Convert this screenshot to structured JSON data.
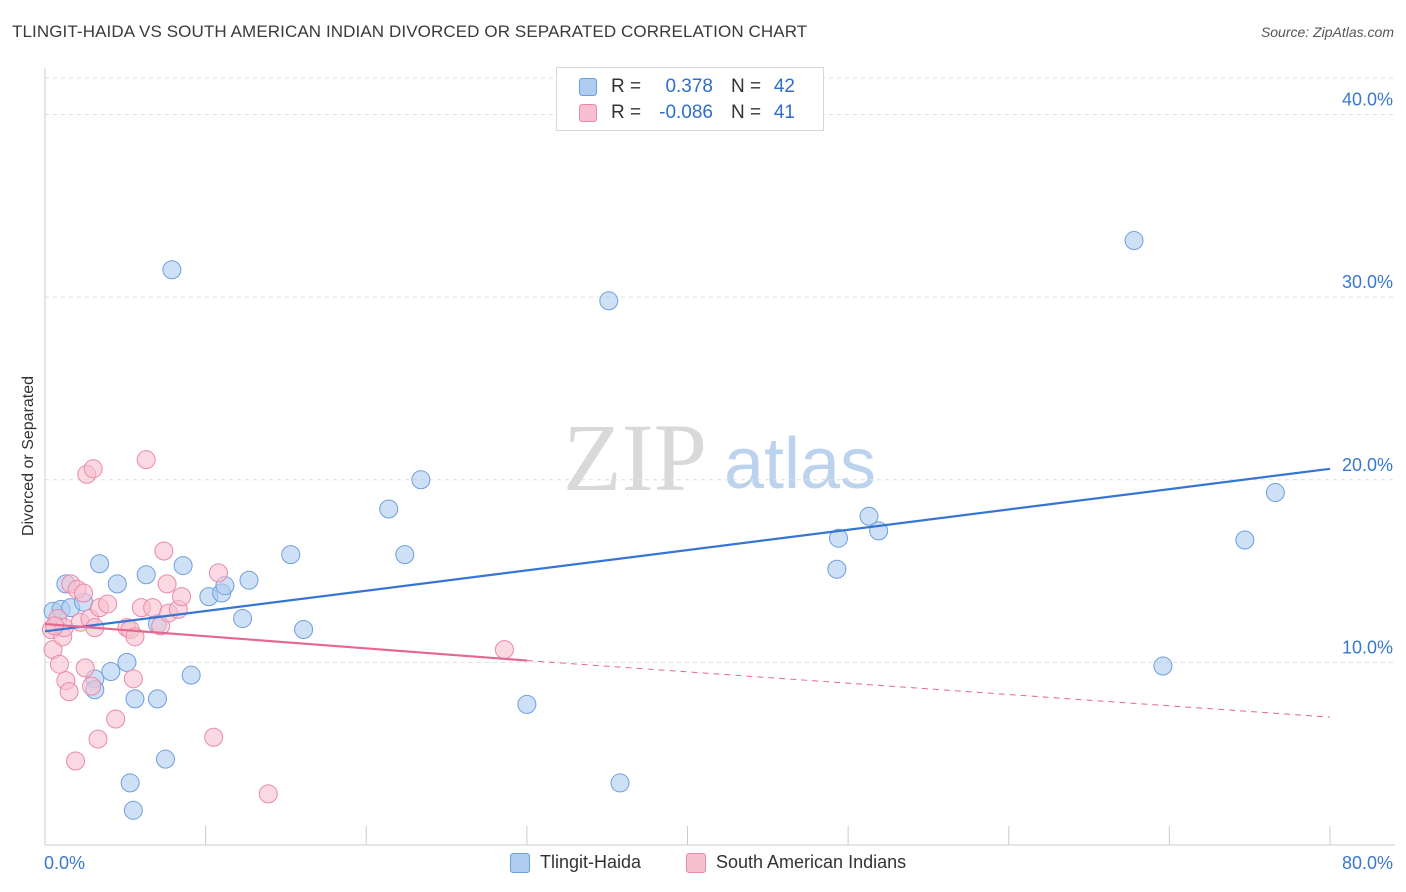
{
  "header": {
    "title": "TLINGIT-HAIDA VS SOUTH AMERICAN INDIAN DIVORCED OR SEPARATED CORRELATION CHART",
    "source": "Source: ZipAtlas.com"
  },
  "legend": {
    "rows": [
      {
        "r_label": "R =",
        "r_value": "0.378",
        "n_label": "N =",
        "n_value": "42"
      },
      {
        "r_label": "R =",
        "r_value": "-0.086",
        "n_label": "N =",
        "n_value": "41"
      }
    ]
  },
  "bottom_legend": {
    "series1": "Tlingit-Haida",
    "series2": "South American Indians"
  },
  "colors": {
    "series1_fill": "#aecbf0",
    "series1_stroke": "#6f9fdc",
    "series1_line": "#3575d4",
    "series2_fill": "#f7bfd0",
    "series2_stroke": "#e98aa9",
    "series2_line": "#e5688f",
    "tick_label": "#3a78d0",
    "grid": "#dddddd",
    "watermark": "#d9d9d9",
    "watermark_accent": "#bcd3ef"
  },
  "watermark": {
    "part1": "ZIP",
    "part2": "atlas"
  },
  "chart_data": {
    "type": "scatter",
    "title": "TLINGIT-HAIDA VS SOUTH AMERICAN INDIAN DIVORCED OR SEPARATED CORRELATION CHART",
    "xlabel": "",
    "ylabel": "Divorced or Separated",
    "xlim": [
      0,
      80
    ],
    "ylim": [
      0,
      42
    ],
    "x_tick_labels": [
      "0.0%",
      "80.0%"
    ],
    "y_ticks": [
      10,
      20,
      30,
      40
    ],
    "y_tick_labels": [
      "10.0%",
      "20.0%",
      "30.0%",
      "40.0%"
    ],
    "grid": true,
    "legend_placement": "top-center",
    "series": [
      {
        "name": "Tlingit-Haida",
        "points": [
          [
            0.5,
            12.8
          ],
          [
            1.0,
            12.9
          ],
          [
            1.3,
            14.3
          ],
          [
            1.6,
            13.0
          ],
          [
            2.4,
            13.3
          ],
          [
            3.1,
            9.1
          ],
          [
            3.1,
            8.5
          ],
          [
            3.4,
            15.4
          ],
          [
            4.1,
            9.5
          ],
          [
            4.5,
            14.3
          ],
          [
            5.1,
            10.0
          ],
          [
            5.5,
            1.9
          ],
          [
            5.3,
            3.4
          ],
          [
            5.6,
            8.0
          ],
          [
            6.3,
            14.8
          ],
          [
            7.0,
            8.0
          ],
          [
            7.5,
            4.7
          ],
          [
            7.9,
            31.5
          ],
          [
            8.6,
            15.3
          ],
          [
            9.1,
            9.3
          ],
          [
            10.2,
            13.6
          ],
          [
            11.0,
            13.8
          ],
          [
            11.2,
            14.2
          ],
          [
            12.3,
            12.4
          ],
          [
            12.7,
            14.5
          ],
          [
            15.3,
            15.9
          ],
          [
            16.1,
            11.8
          ],
          [
            21.4,
            18.4
          ],
          [
            22.4,
            15.9
          ],
          [
            23.4,
            20.0
          ],
          [
            30.0,
            7.7
          ],
          [
            35.1,
            29.8
          ],
          [
            35.8,
            3.4
          ],
          [
            49.3,
            15.1
          ],
          [
            49.4,
            16.8
          ],
          [
            51.3,
            18.0
          ],
          [
            51.9,
            17.2
          ],
          [
            67.8,
            33.1
          ],
          [
            69.6,
            9.8
          ],
          [
            74.7,
            16.7
          ],
          [
            76.6,
            19.3
          ],
          [
            7.0,
            12.1
          ]
        ]
      },
      {
        "name": "South American Indians",
        "points": [
          [
            0.4,
            11.8
          ],
          [
            0.5,
            10.7
          ],
          [
            0.8,
            12.4
          ],
          [
            0.9,
            9.9
          ],
          [
            1.1,
            11.4
          ],
          [
            1.2,
            11.9
          ],
          [
            1.3,
            9.0
          ],
          [
            1.5,
            8.4
          ],
          [
            1.6,
            14.3
          ],
          [
            1.9,
            4.6
          ],
          [
            2.0,
            14.0
          ],
          [
            2.2,
            12.2
          ],
          [
            2.4,
            13.8
          ],
          [
            2.5,
            9.7
          ],
          [
            2.6,
            20.3
          ],
          [
            2.8,
            12.4
          ],
          [
            2.9,
            8.7
          ],
          [
            3.0,
            20.6
          ],
          [
            3.1,
            11.9
          ],
          [
            3.3,
            5.8
          ],
          [
            3.4,
            13.0
          ],
          [
            3.9,
            13.2
          ],
          [
            4.4,
            6.9
          ],
          [
            5.1,
            11.9
          ],
          [
            5.3,
            11.8
          ],
          [
            5.5,
            9.1
          ],
          [
            5.6,
            11.4
          ],
          [
            6.0,
            13.0
          ],
          [
            6.3,
            21.1
          ],
          [
            6.7,
            13.0
          ],
          [
            7.2,
            12.0
          ],
          [
            7.4,
            16.1
          ],
          [
            7.6,
            14.3
          ],
          [
            7.7,
            12.7
          ],
          [
            8.3,
            12.9
          ],
          [
            8.5,
            13.6
          ],
          [
            10.5,
            5.9
          ],
          [
            10.8,
            14.9
          ],
          [
            13.9,
            2.8
          ],
          [
            28.6,
            10.7
          ],
          [
            0.6,
            12.0
          ]
        ]
      }
    ],
    "trendlines": [
      {
        "series": "Tlingit-Haida",
        "x": [
          0,
          80
        ],
        "y": [
          11.7,
          20.6
        ]
      },
      {
        "series": "South American Indians",
        "x": [
          0,
          30
        ],
        "y": [
          12.1,
          10.1
        ],
        "dashed_extension_to": [
          80,
          7.0
        ]
      }
    ]
  }
}
